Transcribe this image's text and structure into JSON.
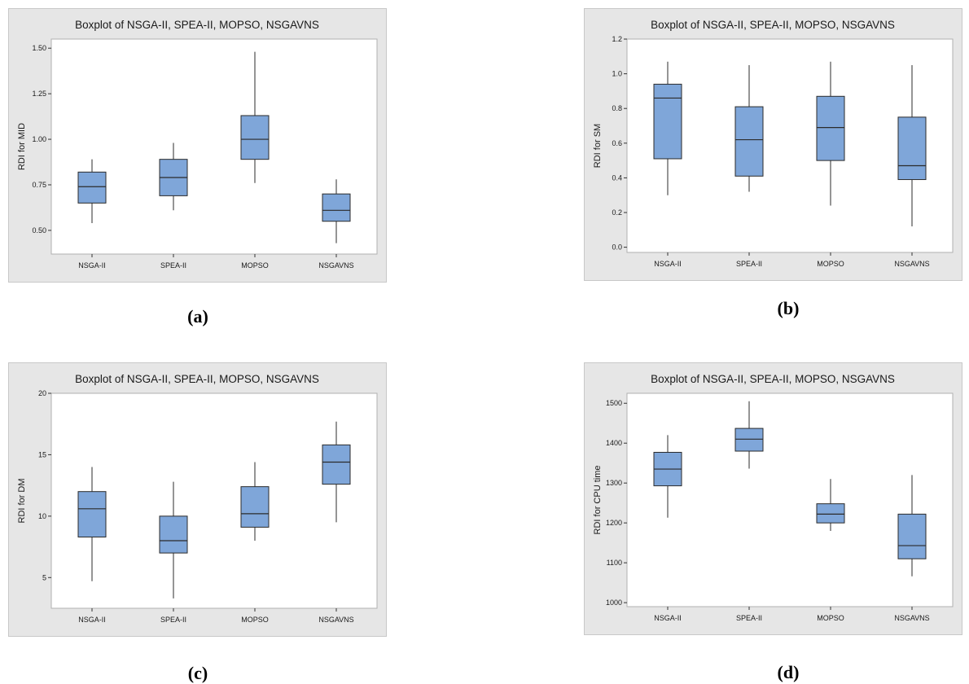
{
  "colors": {
    "box_fill": "#7fa6d9",
    "box_stroke": "#2b2b2b",
    "frame_bg": "#e6e6e6",
    "plot_bg": "#ffffff"
  },
  "chart_data": [
    {
      "type": "box",
      "id": "a",
      "caption": "(a)",
      "title": "Boxplot of NSGA-II, SPEA-II, MOPSO, NSGAVNS",
      "ylabel": "RDI for MID",
      "xlabel": "",
      "categories": [
        "NSGA-II",
        "SPEA-II",
        "MOPSO",
        "NSGAVNS"
      ],
      "ylim": [
        0.37,
        1.55
      ],
      "yticks": [
        0.5,
        0.75,
        1.0,
        1.25,
        1.5
      ],
      "ytick_labels": [
        "0.50",
        "0.75",
        "1.00",
        "1.25",
        "1.50"
      ],
      "boxes": [
        {
          "min": 0.54,
          "q1": 0.65,
          "median": 0.74,
          "q3": 0.82,
          "max": 0.89
        },
        {
          "min": 0.61,
          "q1": 0.69,
          "median": 0.79,
          "q3": 0.89,
          "max": 0.98
        },
        {
          "min": 0.76,
          "q1": 0.89,
          "median": 1.0,
          "q3": 1.13,
          "max": 1.48
        },
        {
          "min": 0.43,
          "q1": 0.55,
          "median": 0.61,
          "q3": 0.7,
          "max": 0.78
        }
      ]
    },
    {
      "type": "box",
      "id": "b",
      "caption": "(b)",
      "title": "Boxplot of NSGA-II, SPEA-II, MOPSO, NSGAVNS",
      "ylabel": "RDI for SM",
      "xlabel": "",
      "categories": [
        "NSGA-II",
        "SPEA-II",
        "MOPSO",
        "NSGAVNS"
      ],
      "ylim": [
        -0.03,
        1.2
      ],
      "yticks": [
        0.0,
        0.2,
        0.4,
        0.6,
        0.8,
        1.0,
        1.2
      ],
      "ytick_labels": [
        "0.0",
        "0.2",
        "0.4",
        "0.6",
        "0.8",
        "1.0",
        "1.2"
      ],
      "boxes": [
        {
          "min": 0.3,
          "q1": 0.51,
          "median": 0.86,
          "q3": 0.94,
          "max": 1.07
        },
        {
          "min": 0.32,
          "q1": 0.41,
          "median": 0.62,
          "q3": 0.81,
          "max": 1.05
        },
        {
          "min": 0.24,
          "q1": 0.5,
          "median": 0.69,
          "q3": 0.87,
          "max": 1.07
        },
        {
          "min": 0.12,
          "q1": 0.39,
          "median": 0.47,
          "q3": 0.75,
          "max": 1.05
        }
      ]
    },
    {
      "type": "box",
      "id": "c",
      "caption": "(c)",
      "title": "Boxplot of NSGA-II, SPEA-II, MOPSO, NSGAVNS",
      "ylabel": "RDI for DM",
      "xlabel": "",
      "categories": [
        "NSGA-II",
        "SPEA-II",
        "MOPSO",
        "NSGAVNS"
      ],
      "ylim": [
        2.5,
        20.0
      ],
      "yticks": [
        5,
        10,
        15,
        20
      ],
      "ytick_labels": [
        "5",
        "10",
        "15",
        "20"
      ],
      "boxes": [
        {
          "min": 4.7,
          "q1": 8.3,
          "median": 10.6,
          "q3": 12.0,
          "max": 14.0
        },
        {
          "min": 3.3,
          "q1": 7.0,
          "median": 8.0,
          "q3": 10.0,
          "max": 12.8
        },
        {
          "min": 8.0,
          "q1": 9.1,
          "median": 10.2,
          "q3": 12.4,
          "max": 14.4
        },
        {
          "min": 9.5,
          "q1": 12.6,
          "median": 14.4,
          "q3": 15.8,
          "max": 17.7
        }
      ]
    },
    {
      "type": "box",
      "id": "d",
      "caption": "(d)",
      "title": "Boxplot of NSGA-II, SPEA-II, MOPSO, NSGAVNS",
      "ylabel": "RDI for CPU time",
      "xlabel": "",
      "categories": [
        "NSGA-II",
        "SPEA-II",
        "MOPSO",
        "NSGAVNS"
      ],
      "ylim": [
        990,
        1525
      ],
      "yticks": [
        1000,
        1100,
        1200,
        1300,
        1400,
        1500
      ],
      "ytick_labels": [
        "1000",
        "1100",
        "1200",
        "1300",
        "1400",
        "1500"
      ],
      "boxes": [
        {
          "min": 1213,
          "q1": 1293,
          "median": 1335,
          "q3": 1377,
          "max": 1420
        },
        {
          "min": 1336,
          "q1": 1380,
          "median": 1410,
          "q3": 1437,
          "max": 1505
        },
        {
          "min": 1180,
          "q1": 1200,
          "median": 1222,
          "q3": 1248,
          "max": 1310
        },
        {
          "min": 1066,
          "q1": 1110,
          "median": 1143,
          "q3": 1222,
          "max": 1320
        }
      ]
    }
  ]
}
